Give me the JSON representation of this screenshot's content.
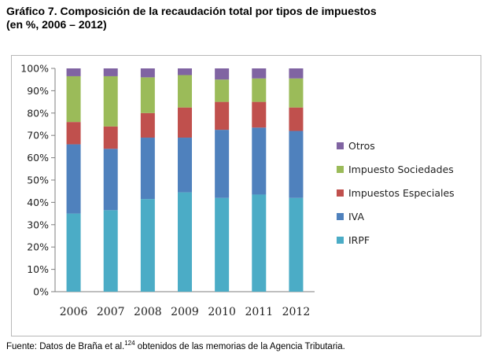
{
  "figure": {
    "title_line1": "Gráfico 7. Composición de la recaudación total por tipos de impuestos",
    "title_line2": "(en %, 2006 – 2012)",
    "source_prefix": "Fuente: Datos de Braña et al.",
    "source_superscript": "124",
    "source_suffix": " obtenidos de las memorias de la Agencia Tributaria."
  },
  "chart_data": {
    "type": "bar",
    "stacked": true,
    "categories": [
      "2006",
      "2007",
      "2008",
      "2009",
      "2010",
      "2011",
      "2012"
    ],
    "y_tick_labels": [
      "0%",
      "10%",
      "20%",
      "30%",
      "40%",
      "50%",
      "60%",
      "70%",
      "80%",
      "90%",
      "100%"
    ],
    "ylim": [
      0,
      100
    ],
    "grid": false,
    "legend_position": "right",
    "series": [
      {
        "name": "IRPF",
        "color": "#4bacc6",
        "values": [
          35,
          36.5,
          41.5,
          44.5,
          42,
          43.5,
          42
        ]
      },
      {
        "name": "IVA",
        "color": "#4f81bd",
        "values": [
          31,
          27.5,
          27.5,
          24.5,
          30.5,
          30,
          30
        ]
      },
      {
        "name": "Impuestos Especiales",
        "color": "#c0504d",
        "values": [
          10,
          10,
          11,
          13.5,
          12.5,
          11.5,
          10.5
        ]
      },
      {
        "name": "Impuesto Sociedades",
        "color": "#9bbb59",
        "values": [
          20.5,
          22.5,
          16,
          14.5,
          10,
          10.5,
          13
        ]
      },
      {
        "name": "Otros",
        "color": "#8064a2",
        "values": [
          3.5,
          3.5,
          4,
          3,
          5,
          4.5,
          4.5
        ]
      }
    ]
  }
}
